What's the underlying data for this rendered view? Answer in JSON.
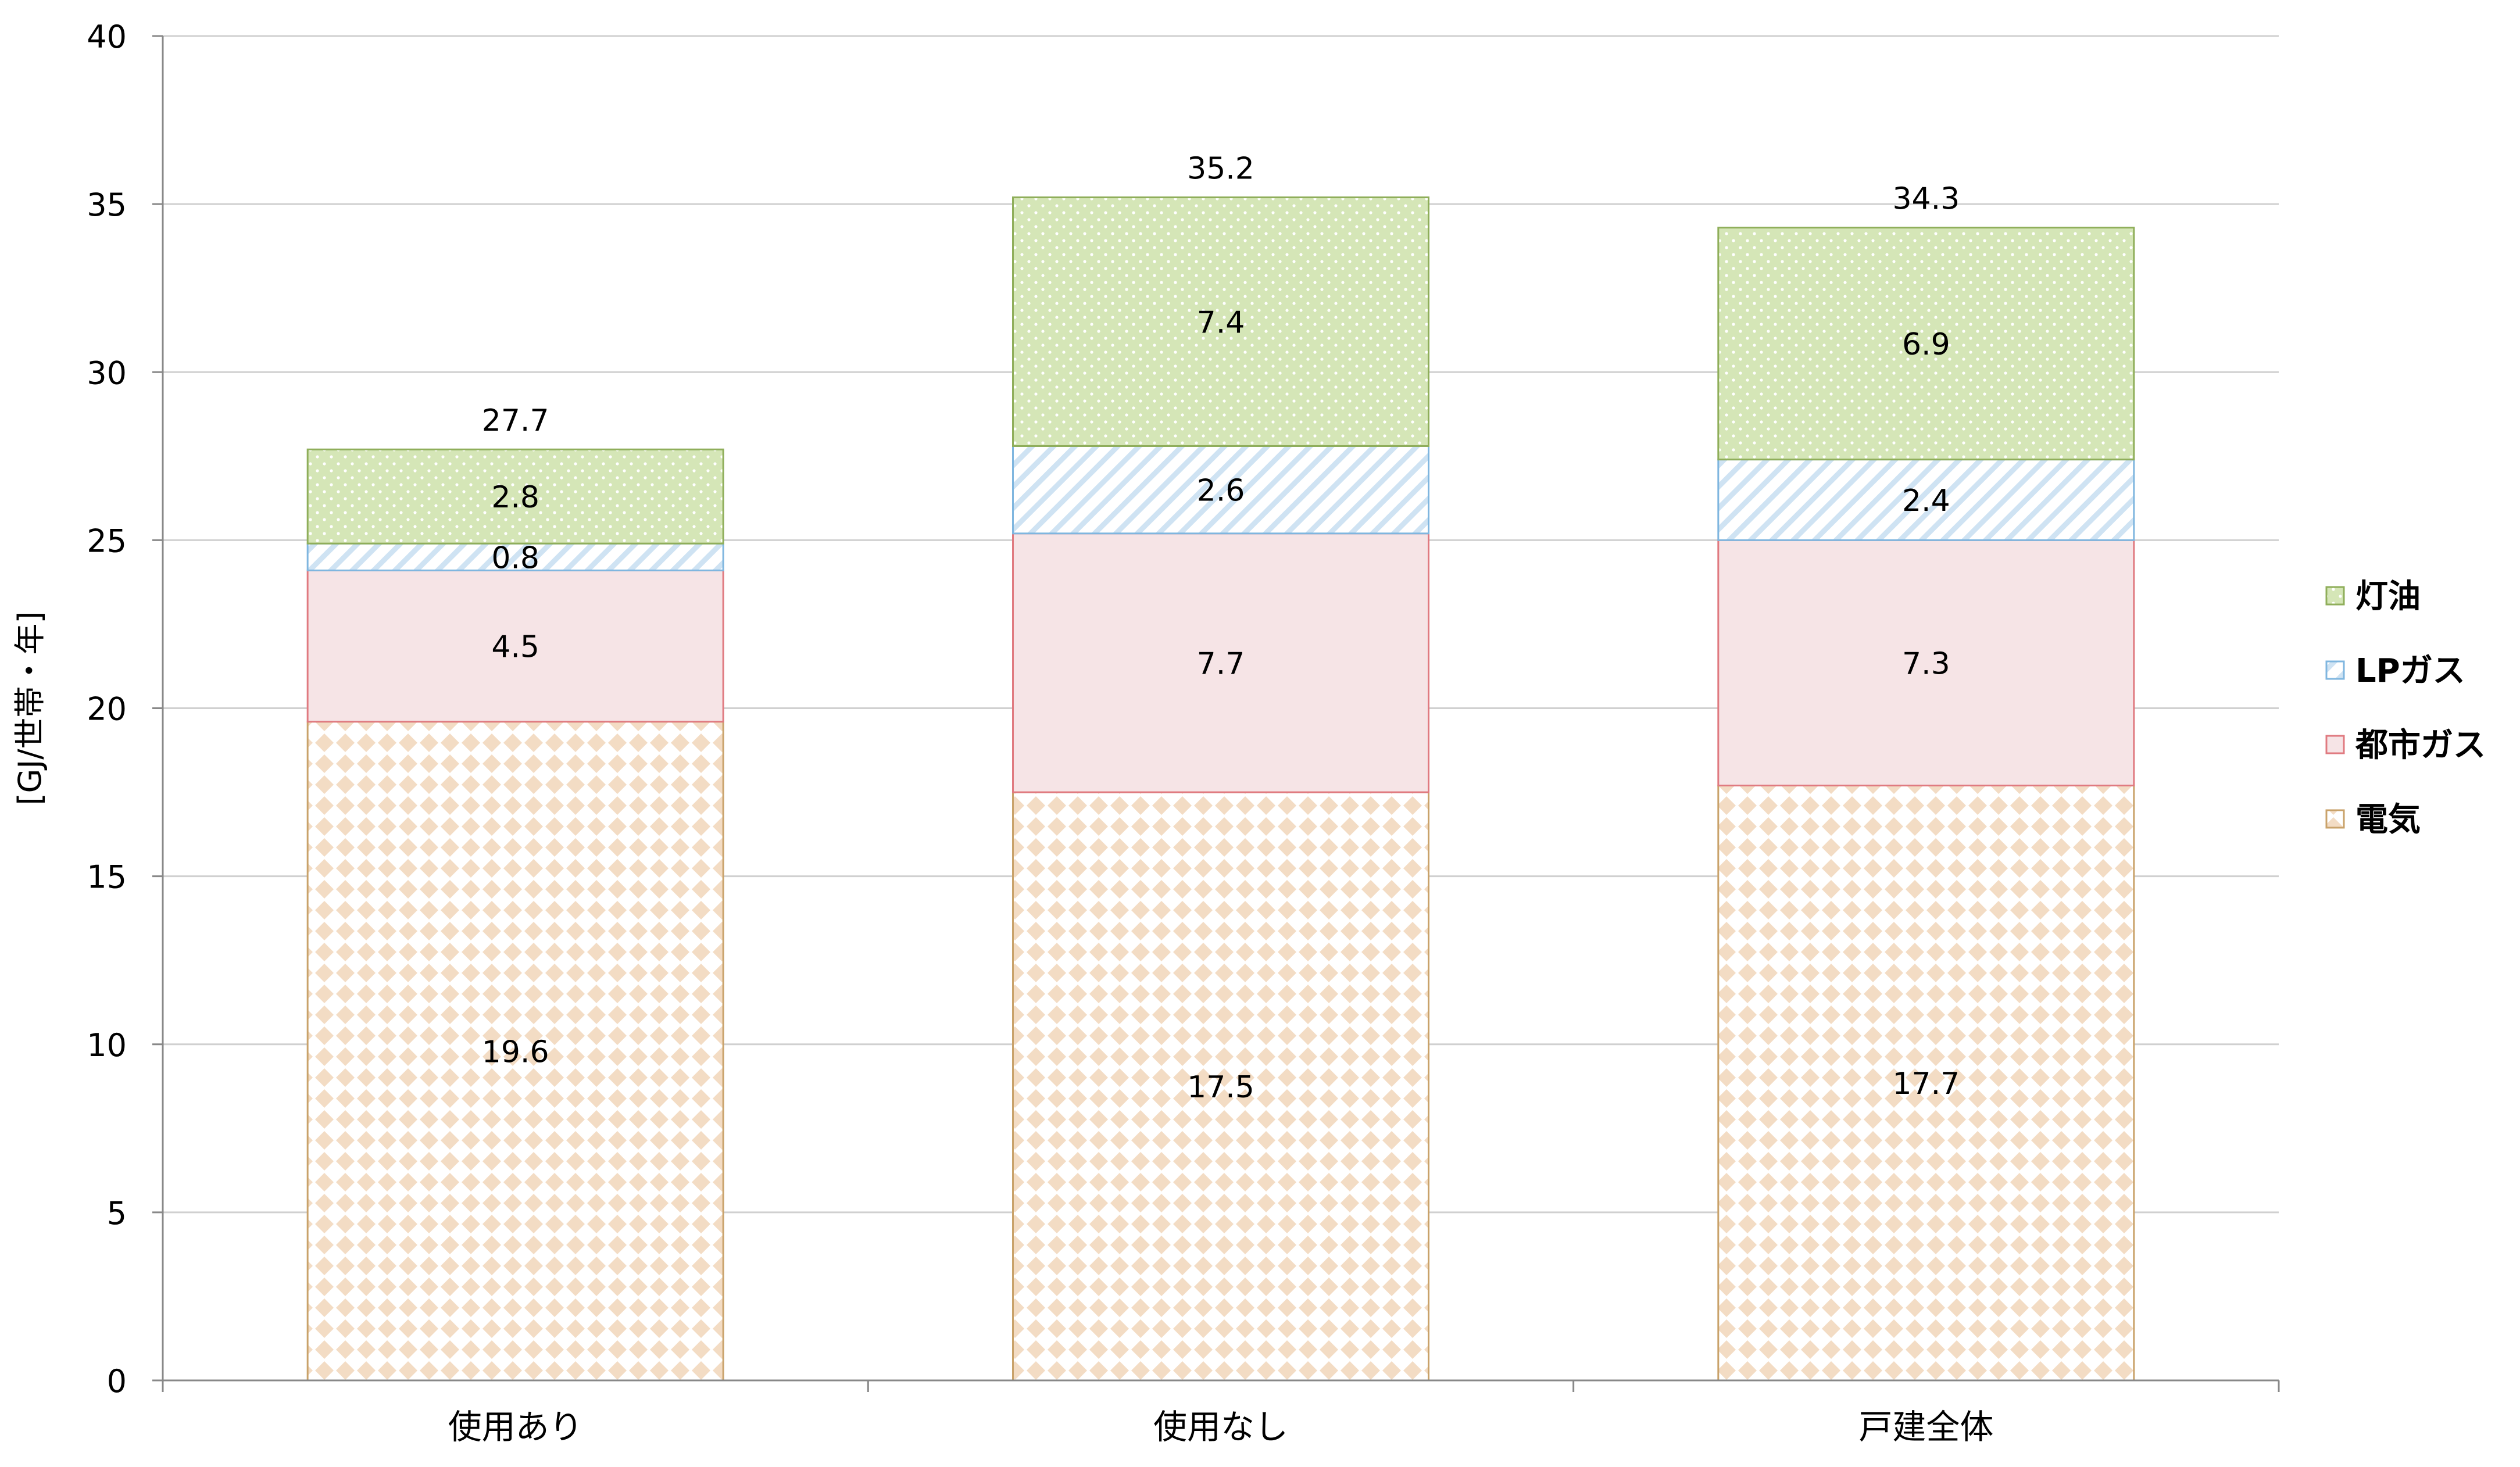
{
  "chart_data": {
    "type": "bar",
    "stacked": true,
    "title": "",
    "xlabel": "",
    "ylabel": "[GJ/世帯・年]",
    "ylim": [
      0,
      40
    ],
    "yticks": [
      0,
      5,
      10,
      15,
      20,
      25,
      30,
      35,
      40
    ],
    "ytick_labels": [
      "0",
      "5",
      "10",
      "15",
      "20",
      "25",
      "30",
      "35",
      "40"
    ],
    "grid": true,
    "legend_position": "right",
    "categories": [
      "使用あり",
      "使用なし",
      "戸建全体"
    ],
    "totals": [
      "27.7",
      "35.2",
      "34.3"
    ],
    "series": [
      {
        "name": "電気",
        "values": [
          19.6,
          17.5,
          17.7
        ],
        "labels": [
          "19.6",
          "17.5",
          "17.7"
        ],
        "color": "#f3dcc4",
        "border": "#c9a26a",
        "pattern": "diamond"
      },
      {
        "name": "都市ガス",
        "values": [
          4.5,
          7.7,
          7.3
        ],
        "labels": [
          "4.5",
          "7.7",
          "7.3"
        ],
        "color": "#f6e4e6",
        "border": "#e07a80",
        "pattern": "solid"
      },
      {
        "name": "LPガス",
        "values": [
          0.8,
          2.6,
          2.4
        ],
        "labels": [
          "0.8",
          "2.6",
          "2.4"
        ],
        "color": "#dcecf7",
        "border": "#7fb6df",
        "pattern": "hatch"
      },
      {
        "name": "灯油",
        "values": [
          2.8,
          7.4,
          6.9
        ],
        "labels": [
          "2.8",
          "7.4",
          "6.9"
        ],
        "color": "#d5e6b7",
        "border": "#8fae5a",
        "pattern": "dots"
      }
    ]
  }
}
